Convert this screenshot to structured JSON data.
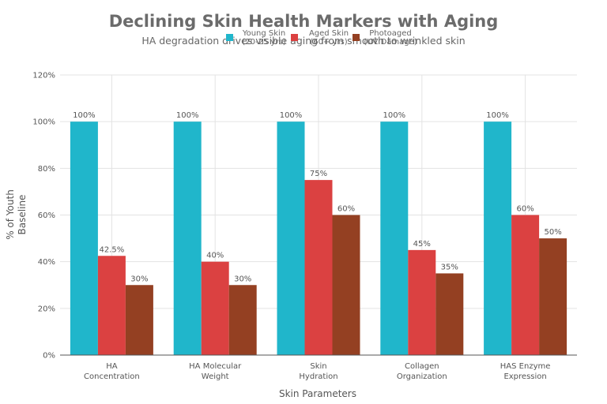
{
  "colors": {
    "young": "#20B6CB",
    "aged": "#DB4141",
    "photo": "#944022",
    "grid": "#e3e3e3",
    "axis": "#555555"
  },
  "chart_data": {
    "type": "bar",
    "title": "Declining Skin Health Markers with Aging",
    "subtitle": "HA degradation drives visible aging from smooth to wrinkled skin",
    "xlabel": "Skin Parameters",
    "ylabel": [
      "% of Youth",
      "Baseline"
    ],
    "ylim": [
      0,
      120
    ],
    "yticks": [
      "0%",
      "20%",
      "40%",
      "60%",
      "80%",
      "100%",
      "120%"
    ],
    "grid": true,
    "legend_position": "top-center",
    "categories": [
      [
        "HA",
        "Concentration"
      ],
      [
        "HA Molecular",
        "Weight"
      ],
      [
        "Skin",
        "Hydration"
      ],
      [
        "Collagen",
        "Organization"
      ],
      [
        "HAS Enzyme",
        "Expression"
      ]
    ],
    "series": [
      {
        "name": [
          "Young Skin",
          "(20-25 yrs)"
        ],
        "color_key": "young",
        "values": [
          100,
          100,
          100,
          100,
          100
        ],
        "labels": [
          "100%",
          "100%",
          "100%",
          "100%",
          "100%"
        ]
      },
      {
        "name": [
          "Aged Skin",
          "(60+ yrs)"
        ],
        "color_key": "aged",
        "values": [
          42.5,
          40,
          75,
          45,
          60
        ],
        "labels": [
          "42.5%",
          "40%",
          "75%",
          "45%",
          "60%"
        ]
      },
      {
        "name": [
          "Photoaged",
          "(UV Damage)"
        ],
        "color_key": "photo",
        "values": [
          30,
          30,
          60,
          35,
          50
        ],
        "labels": [
          "30%",
          "30%",
          "60%",
          "35%",
          "50%"
        ]
      }
    ]
  }
}
